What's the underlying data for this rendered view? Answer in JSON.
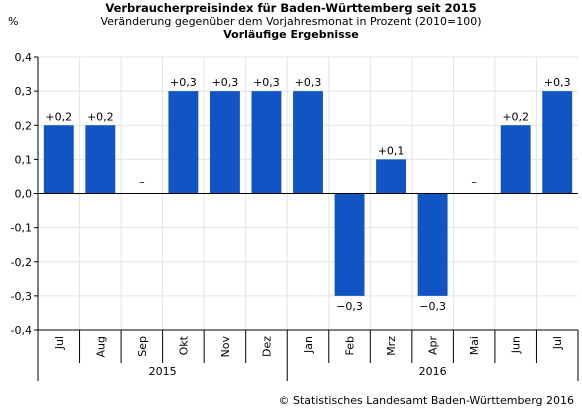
{
  "header": {
    "title": "Verbraucherpreisindex für Baden-Württemberg seit 2015",
    "subtitle": "Veränderung gegenüber dem Vorjahresmonat in Prozent (2010=100)",
    "note": "Vorläufige Ergebnisse"
  },
  "ylabel": "%",
  "copyright": "© Statistisches Landesamt Baden-Württemberg 2016",
  "colors": {
    "bar": "#1155c4"
  },
  "chart_data": {
    "type": "bar",
    "categories": [
      "Jul",
      "Aug",
      "Sep",
      "Okt",
      "Nov",
      "Dez",
      "Jan",
      "Feb",
      "Mrz",
      "Apr",
      "Mai",
      "Jun",
      "Jul"
    ],
    "values": [
      0.2,
      0.2,
      0,
      0.3,
      0.3,
      0.3,
      0.3,
      -0.3,
      0.1,
      -0.3,
      0,
      0.2,
      0.3
    ],
    "labels": [
      "+0,2",
      "+0,2",
      "–",
      "+0,3",
      "+0,3",
      "+0,3",
      "+0,3",
      "−0,3",
      "+0,1",
      "−0,3",
      "–",
      "+0,2",
      "+0,3"
    ],
    "year_groups": [
      {
        "label": "2015",
        "start": 0,
        "end": 5
      },
      {
        "label": "2016",
        "start": 6,
        "end": 12
      }
    ],
    "yticks": [
      0.4,
      0.3,
      0.2,
      0.1,
      0,
      -0.1,
      -0.2,
      -0.3,
      -0.4
    ],
    "ytick_labels": [
      "0,4",
      "0,3",
      "0,2",
      "0,1",
      "0,0",
      "-0,1",
      "-0,2",
      "-0,3",
      "-0,4"
    ],
    "ylim": [
      -0.4,
      0.4
    ],
    "grid": true,
    "legend": "none"
  }
}
